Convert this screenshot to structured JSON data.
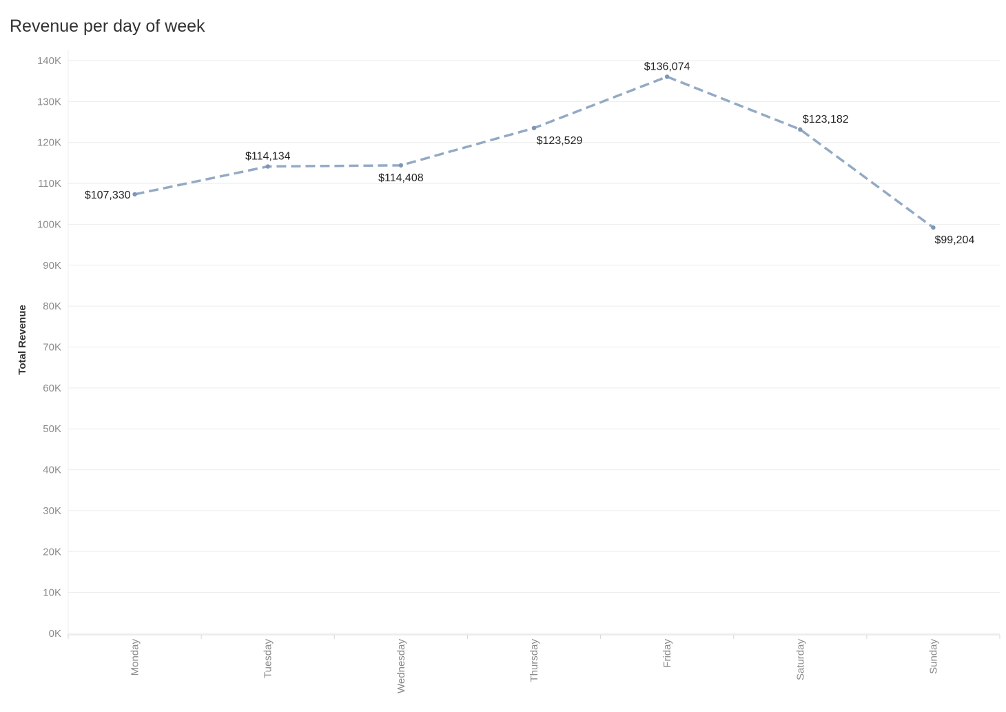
{
  "chart_data": {
    "type": "line",
    "title": "Revenue per day of week",
    "xlabel": "",
    "ylabel": "Total Revenue",
    "categories": [
      "Monday",
      "Tuesday",
      "Wednesday",
      "Thursday",
      "Friday",
      "Saturday",
      "Sunday"
    ],
    "values": [
      107330,
      114134,
      114408,
      123529,
      136074,
      123182,
      99204
    ],
    "data_labels": [
      "$107,330",
      "$114,134",
      "$114,408",
      "$123,529",
      "$136,074",
      "$123,182",
      "$99,204"
    ],
    "ylim": [
      0,
      140000
    ],
    "yticks": [
      0,
      10000,
      20000,
      30000,
      40000,
      50000,
      60000,
      70000,
      80000,
      90000,
      100000,
      110000,
      120000,
      130000,
      140000
    ],
    "ytick_labels": [
      "0K",
      "10K",
      "20K",
      "30K",
      "40K",
      "50K",
      "60K",
      "70K",
      "80K",
      "90K",
      "100K",
      "110K",
      "120K",
      "130K",
      "140K"
    ],
    "grid": true,
    "line_style": "dashed",
    "colors": {
      "line": "#93aac4",
      "marker": "#7d96b4",
      "grid": "#ececec",
      "axis": "#d8d8d8"
    }
  }
}
